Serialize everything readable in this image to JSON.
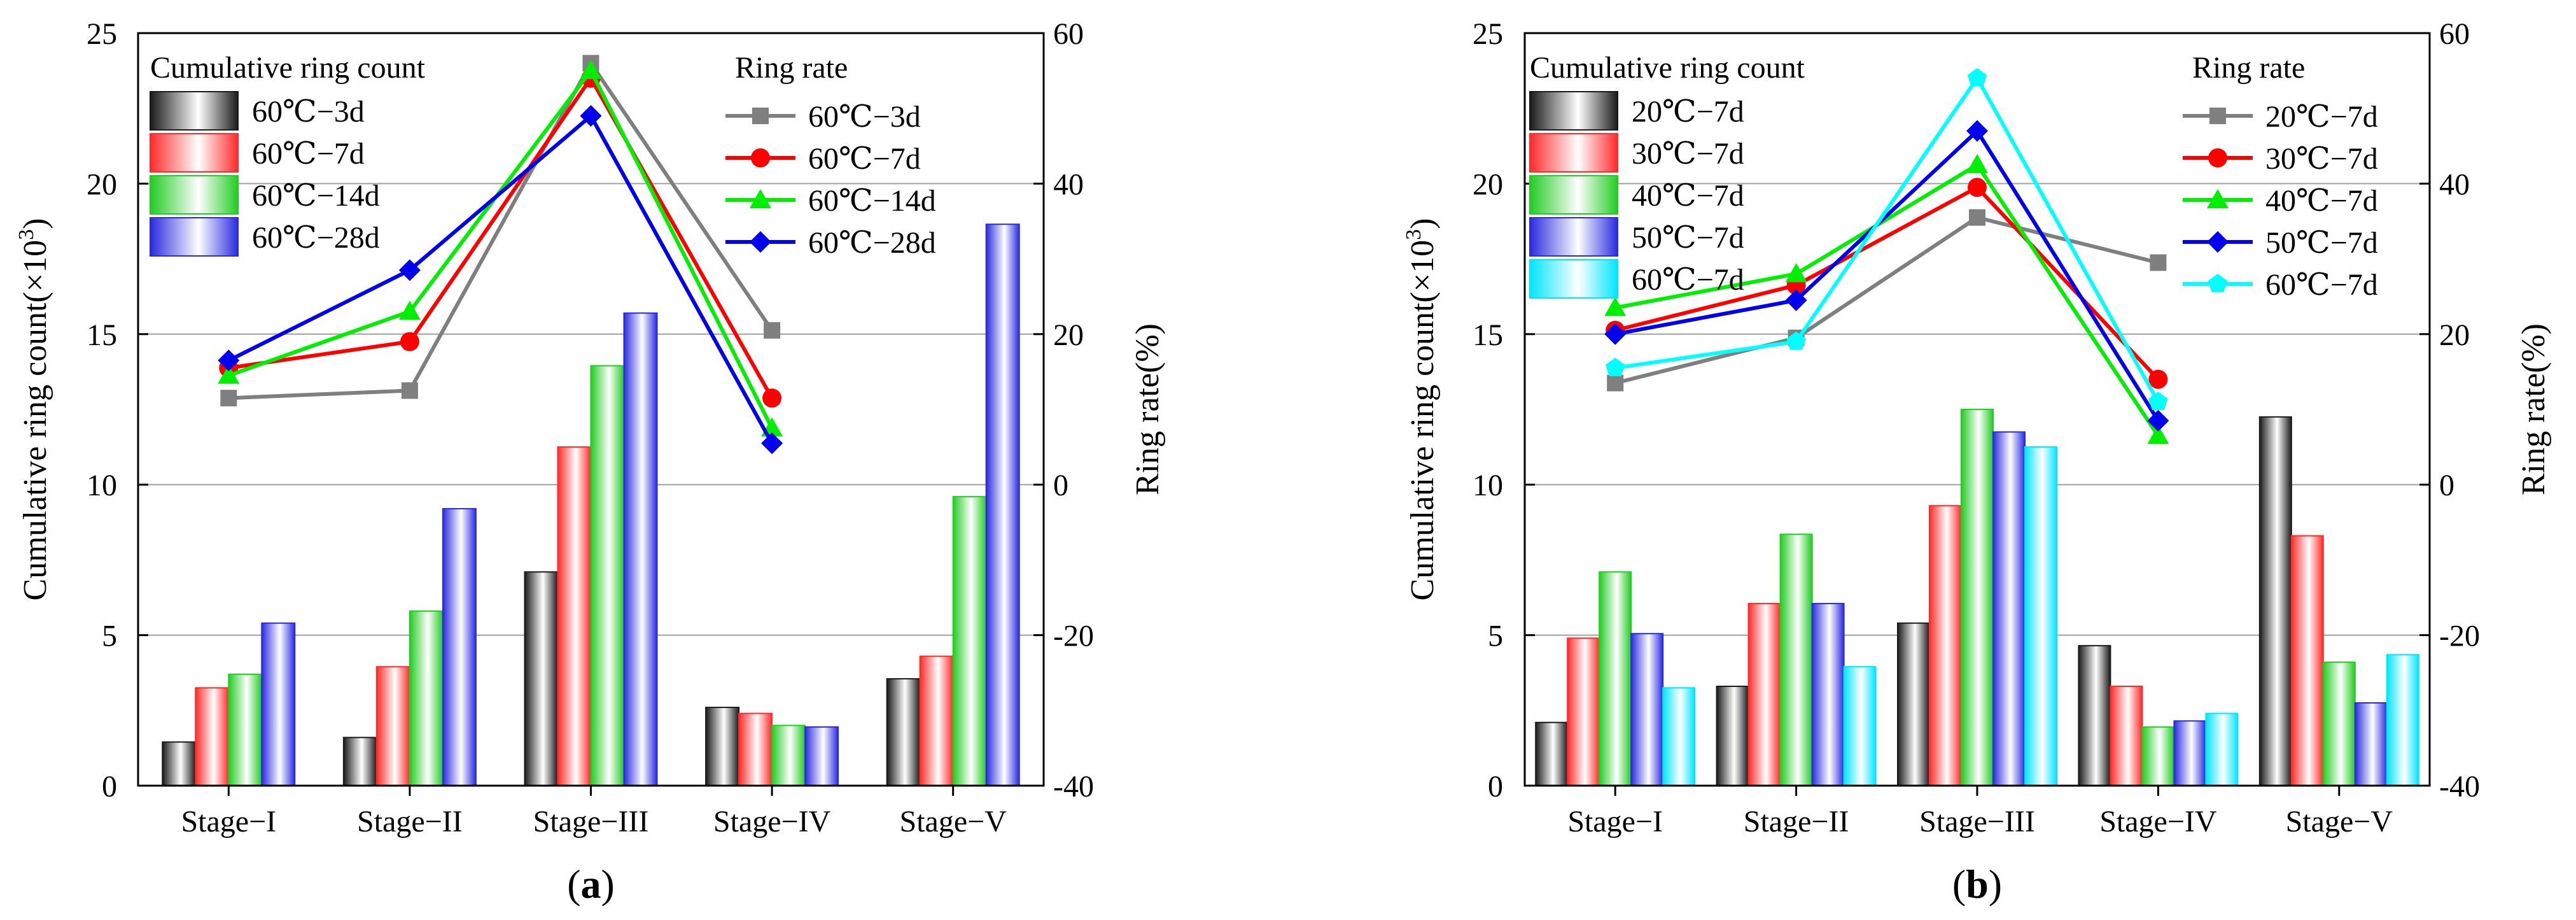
{
  "chart_data": [
    {
      "type": "bar+line",
      "panel_label": "(a)",
      "panel_letter": "a",
      "categories": [
        "Stage−I",
        "Stage−II",
        "Stage−III",
        "Stage−IV",
        "Stage−V"
      ],
      "left_axis": {
        "label_prefix": "Cumulative ring count(×10",
        "label_exp": "3",
        "label_suffix": ")",
        "ylim": [
          0,
          25
        ],
        "ticks": [
          0,
          5,
          10,
          15,
          20,
          25
        ]
      },
      "right_axis": {
        "label": "Ring rate(%)",
        "ylim": [
          -40,
          60
        ],
        "ticks": [
          -40,
          -20,
          0,
          20,
          40,
          60
        ]
      },
      "bar_legend_title": "Cumulative ring count",
      "line_legend_title": "Ring rate",
      "bar_series": [
        {
          "name": "60℃−3d",
          "color": "#1a1a1a",
          "values": [
            1.45,
            1.6,
            7.1,
            2.6,
            3.55
          ]
        },
        {
          "name": "60℃−7d",
          "color": "#ff2a2a",
          "values": [
            3.25,
            3.95,
            11.25,
            2.4,
            4.3
          ]
        },
        {
          "name": "60℃−14d",
          "color": "#22cc22",
          "values": [
            3.7,
            5.8,
            13.95,
            2.0,
            9.6
          ]
        },
        {
          "name": "60℃−28d",
          "color": "#2a2ae0",
          "values": [
            5.4,
            9.2,
            15.7,
            1.95,
            18.65
          ]
        }
      ],
      "line_series": [
        {
          "name": "60℃−3d",
          "color": "#7f7f7f",
          "marker": "square",
          "values": [
            11.5,
            12.5,
            56.0,
            20.5
          ]
        },
        {
          "name": "60℃−7d",
          "color": "#ff0000",
          "marker": "circle",
          "values": [
            15.5,
            19.0,
            54.0,
            11.5
          ]
        },
        {
          "name": "60℃−14d",
          "color": "#00ee00",
          "marker": "triangle",
          "values": [
            14.5,
            23.0,
            55.0,
            7.5
          ]
        },
        {
          "name": "60℃−28d",
          "color": "#0000ee",
          "marker": "diamond",
          "values": [
            16.5,
            28.5,
            49.0,
            5.5
          ]
        }
      ]
    },
    {
      "type": "bar+line",
      "panel_label": "(b)",
      "panel_letter": "b",
      "categories": [
        "Stage−I",
        "Stage−II",
        "Stage−III",
        "Stage−IV",
        "Stage−V"
      ],
      "left_axis": {
        "label_prefix": "Cumulative ring count(×10",
        "label_exp": "3",
        "label_suffix": ")",
        "ylim": [
          0,
          25
        ],
        "ticks": [
          0,
          5,
          10,
          15,
          20,
          25
        ]
      },
      "right_axis": {
        "label": "Ring rate(%)",
        "ylim": [
          -40,
          60
        ],
        "ticks": [
          -40,
          -20,
          0,
          20,
          40,
          60
        ]
      },
      "bar_legend_title": "Cumulative ring count",
      "line_legend_title": "Ring rate",
      "bar_series": [
        {
          "name": "20℃−7d",
          "color": "#1a1a1a",
          "values": [
            2.1,
            3.3,
            5.4,
            4.65,
            12.25
          ]
        },
        {
          "name": "30℃−7d",
          "color": "#ff2a2a",
          "values": [
            4.9,
            6.05,
            9.3,
            3.3,
            8.3
          ]
        },
        {
          "name": "40℃−7d",
          "color": "#22cc22",
          "values": [
            7.1,
            8.35,
            12.5,
            1.95,
            4.1
          ]
        },
        {
          "name": "50℃−7d",
          "color": "#2a2ae0",
          "values": [
            5.05,
            6.05,
            11.75,
            2.15,
            2.75
          ]
        },
        {
          "name": "60℃−7d",
          "color": "#00e5ff",
          "values": [
            3.25,
            3.95,
            11.25,
            2.4,
            4.35
          ]
        }
      ],
      "line_series": [
        {
          "name": "20℃−7d",
          "color": "#7f7f7f",
          "marker": "square",
          "values": [
            13.5,
            19.5,
            35.5,
            29.5
          ]
        },
        {
          "name": "30℃−7d",
          "color": "#ff0000",
          "marker": "circle",
          "values": [
            20.5,
            26.5,
            39.5,
            14.0
          ]
        },
        {
          "name": "40℃−7d",
          "color": "#00ee00",
          "marker": "triangle",
          "values": [
            23.5,
            28.0,
            42.5,
            6.5
          ]
        },
        {
          "name": "50℃−7d",
          "color": "#0000ee",
          "marker": "diamond",
          "values": [
            20.0,
            24.5,
            47.0,
            8.5
          ]
        },
        {
          "name": "60℃−7d",
          "color": "#00ffff",
          "marker": "pentagon",
          "values": [
            15.5,
            19.0,
            54.0,
            11.0
          ]
        }
      ]
    }
  ]
}
